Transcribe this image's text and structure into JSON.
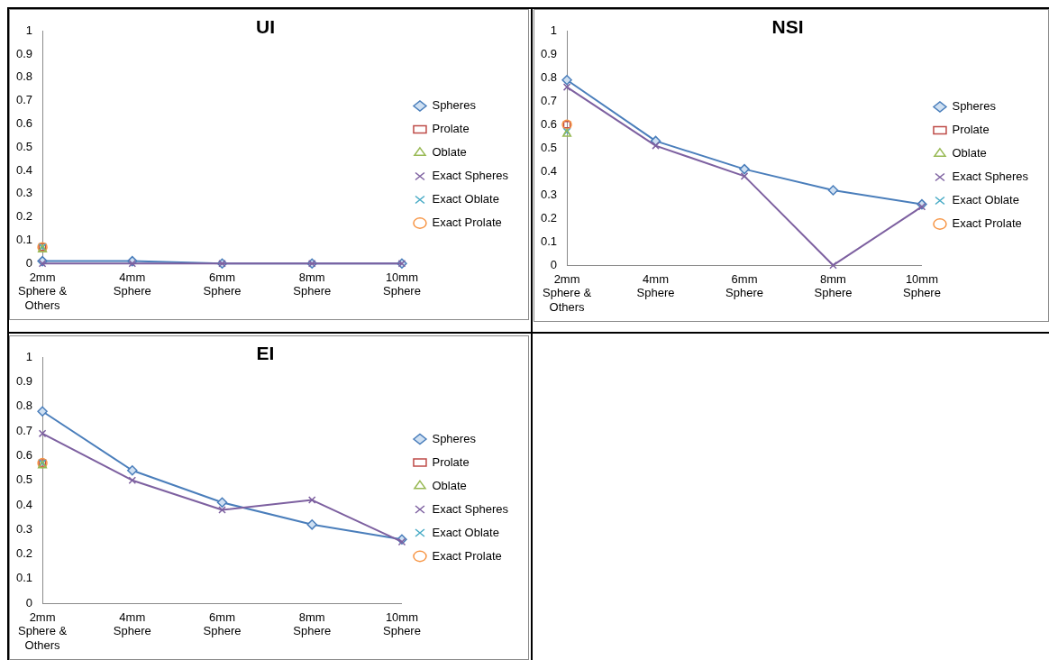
{
  "chart_data": [
    {
      "type": "line",
      "title": "UI",
      "categories": [
        "2mm Sphere & Others",
        "4mm Sphere",
        "6mm Sphere",
        "8mm Sphere",
        "10mm Sphere"
      ],
      "ylim": [
        0,
        1
      ],
      "yticks": [
        0,
        0.1,
        0.2,
        0.3,
        0.4,
        0.5,
        0.6,
        0.7,
        0.8,
        0.9,
        1
      ],
      "grid": false,
      "legend": "right",
      "series": [
        {
          "name": "Spheres",
          "type": "line",
          "color": "#4a7ebb",
          "marker": "diamond",
          "line_style": "solid",
          "values": [
            0.01,
            0.01,
            0,
            0,
            0
          ]
        },
        {
          "name": "Prolate",
          "type": "scatter",
          "color": "#be4b48",
          "marker": "square",
          "values": [
            0.07,
            null,
            null,
            null,
            null
          ]
        },
        {
          "name": "Oblate",
          "type": "scatter",
          "color": "#98b954",
          "marker": "triangle",
          "values": [
            0.06,
            null,
            null,
            null,
            null
          ]
        },
        {
          "name": "Exact Spheres",
          "type": "line",
          "color": "#7d60a0",
          "marker": "cross",
          "line_style": "solid",
          "values": [
            0,
            0,
            0,
            0,
            0
          ]
        },
        {
          "name": "Exact Oblate",
          "type": "scatter",
          "color": "#46aac5",
          "marker": "cross",
          "values": [
            0.07,
            null,
            null,
            null,
            null
          ]
        },
        {
          "name": "Exact Prolate",
          "type": "scatter",
          "color": "#f79646",
          "marker": "circle",
          "values": [
            0.07,
            null,
            null,
            null,
            null
          ]
        }
      ]
    },
    {
      "type": "line",
      "title": "NSI",
      "categories": [
        "2mm Sphere & Others",
        "4mm Sphere",
        "6mm Sphere",
        "8mm Sphere",
        "10mm Sphere"
      ],
      "ylim": [
        0,
        1
      ],
      "yticks": [
        0,
        0.1,
        0.2,
        0.3,
        0.4,
        0.5,
        0.6,
        0.7,
        0.8,
        0.9,
        1
      ],
      "grid": false,
      "legend": "right",
      "series": [
        {
          "name": "Spheres",
          "type": "line",
          "color": "#4a7ebb",
          "marker": "diamond",
          "line_style": "solid",
          "values": [
            0.79,
            0.53,
            0.41,
            0.32,
            0.26
          ]
        },
        {
          "name": "Prolate",
          "type": "scatter",
          "color": "#be4b48",
          "marker": "square",
          "values": [
            0.6,
            null,
            null,
            null,
            null
          ]
        },
        {
          "name": "Oblate",
          "type": "scatter",
          "color": "#98b954",
          "marker": "triangle",
          "values": [
            0.56,
            null,
            null,
            null,
            null
          ]
        },
        {
          "name": "Exact Spheres",
          "type": "line",
          "color": "#7d60a0",
          "marker": "cross",
          "line_style": "solid",
          "values": [
            0.76,
            0.51,
            0.38,
            0,
            0.25
          ]
        },
        {
          "name": "Exact Oblate",
          "type": "scatter",
          "color": "#46aac5",
          "marker": "cross",
          "values": [
            0.57,
            null,
            null,
            null,
            null
          ]
        },
        {
          "name": "Exact Prolate",
          "type": "scatter",
          "color": "#f79646",
          "marker": "circle",
          "values": [
            0.6,
            null,
            null,
            null,
            null
          ]
        }
      ]
    },
    {
      "type": "line",
      "title": "EI",
      "categories": [
        "2mm Sphere & Others",
        "4mm Sphere",
        "6mm Sphere",
        "8mm Sphere",
        "10mm Sphere"
      ],
      "ylim": [
        0,
        1
      ],
      "yticks": [
        0,
        0.1,
        0.2,
        0.3,
        0.4,
        0.5,
        0.6,
        0.7,
        0.8,
        0.9,
        1
      ],
      "grid": false,
      "legend": "right",
      "series": [
        {
          "name": "Spheres",
          "type": "line",
          "color": "#4a7ebb",
          "marker": "diamond",
          "line_style": "solid",
          "values": [
            0.78,
            0.54,
            0.41,
            0.32,
            0.26
          ]
        },
        {
          "name": "Prolate",
          "type": "scatter",
          "color": "#be4b48",
          "marker": "square",
          "values": [
            0.57,
            null,
            null,
            null,
            null
          ]
        },
        {
          "name": "Oblate",
          "type": "scatter",
          "color": "#98b954",
          "marker": "triangle",
          "values": [
            0.56,
            null,
            null,
            null,
            null
          ]
        },
        {
          "name": "Exact Spheres",
          "type": "line",
          "color": "#7d60a0",
          "marker": "cross",
          "line_style": "solid",
          "values": [
            0.69,
            0.5,
            0.38,
            0.42,
            0.25
          ]
        },
        {
          "name": "Exact Oblate",
          "type": "scatter",
          "color": "#46aac5",
          "marker": "cross",
          "values": [
            0.57,
            null,
            null,
            null,
            null
          ]
        },
        {
          "name": "Exact Prolate",
          "type": "scatter",
          "color": "#f79646",
          "marker": "circle",
          "values": [
            0.57,
            null,
            null,
            null,
            null
          ]
        }
      ]
    }
  ]
}
